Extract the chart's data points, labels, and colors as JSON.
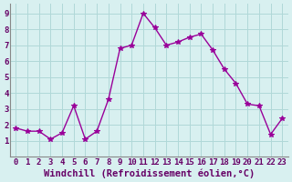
{
  "x": [
    0,
    1,
    2,
    3,
    4,
    5,
    6,
    7,
    8,
    9,
    10,
    11,
    12,
    13,
    14,
    15,
    16,
    17,
    18,
    19,
    20,
    21,
    22,
    23
  ],
  "y": [
    1.8,
    1.6,
    1.6,
    1.1,
    1.5,
    3.2,
    1.1,
    1.6,
    3.6,
    6.8,
    7.0,
    9.0,
    8.1,
    7.0,
    7.2,
    7.5,
    7.7,
    6.7,
    5.5,
    4.6,
    3.3,
    3.2,
    1.4,
    2.4
  ],
  "line_color": "#990099",
  "marker": "*",
  "marker_size": 4,
  "bg_color": "#d8f0f0",
  "grid_color": "#b0d8d8",
  "xlabel": "Windchill (Refroidissement éolien,°C)",
  "xlabel_color": "#660066",
  "xlim": [
    -0.5,
    23.5
  ],
  "ylim": [
    0,
    9.6
  ],
  "yticks": [
    1,
    2,
    3,
    4,
    5,
    6,
    7,
    8,
    9
  ],
  "xticks": [
    0,
    1,
    2,
    3,
    4,
    5,
    6,
    7,
    8,
    9,
    10,
    11,
    12,
    13,
    14,
    15,
    16,
    17,
    18,
    19,
    20,
    21,
    22,
    23
  ],
  "tick_label_fontsize": 6.5,
  "xlabel_fontsize": 7.5,
  "axis_line_color": "#888888"
}
